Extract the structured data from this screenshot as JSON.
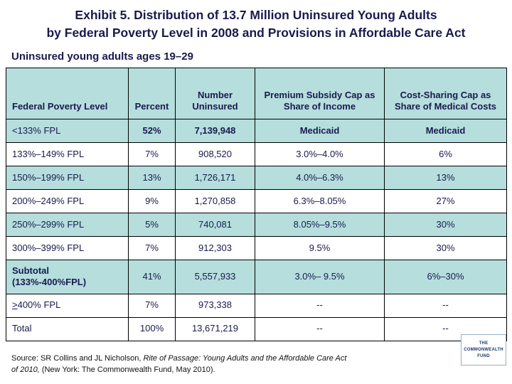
{
  "colors": {
    "row_highlight": "#b5dedd",
    "text": "#1a1a4e",
    "border": "#000000",
    "background": "#ffffff"
  },
  "slide": {
    "title_line1": "Exhibit 5. Distribution of 13.7 Million Uninsured Young Adults",
    "title_line2": "by Federal Poverty Level in 2008 and Provisions in Affordable Care Act",
    "subtitle": "Uninsured young adults ages 19–29"
  },
  "table": {
    "headers": [
      "Federal Poverty Level",
      "Percent",
      "Number Uninsured",
      "Premium Subsidy Cap as Share of Income",
      "Cost-Sharing Cap as Share of Medical Costs"
    ],
    "rows": [
      {
        "fpl": "<133% FPL",
        "percent": "52%",
        "number": "7,139,948",
        "premium": "Medicaid",
        "cost": "Medicaid",
        "shaded": true,
        "bold_values": true
      },
      {
        "fpl": "133%–149% FPL",
        "percent": "7%",
        "number": "908,520",
        "premium": "3.0%–4.0%",
        "cost": "6%",
        "shaded": false
      },
      {
        "fpl": "150%–199% FPL",
        "percent": "13%",
        "number": "1,726,171",
        "premium": "4.0%–6.3%",
        "cost": "13%",
        "shaded": true
      },
      {
        "fpl": "200%–249% FPL",
        "percent": "9%",
        "number": "1,270,858",
        "premium": "6.3%–8.05%",
        "cost": "27%",
        "shaded": false
      },
      {
        "fpl": "250%–299% FPL",
        "percent": "5%",
        "number": "740,081",
        "premium": "8.05%–9.5%",
        "cost": "30%",
        "shaded": true
      },
      {
        "fpl": "300%–399% FPL",
        "percent": "7%",
        "number": "912,303",
        "premium": "9.5%",
        "cost": "30%",
        "shaded": false
      },
      {
        "fpl": "Subtotal\n(133%-400%FPL)",
        "percent": "41%",
        "number": "5,557,933",
        "premium": "3.0%– 9.5%",
        "cost": "6%–30%",
        "shaded": true,
        "bold_label": true
      },
      {
        "fpl": ">400% FPL",
        "percent": "7%",
        "number": "973,338",
        "premium": "--",
        "cost": "--",
        "shaded": false,
        "underline_first": true
      },
      {
        "fpl": "Total",
        "percent": "100%",
        "number": "13,671,219",
        "premium": "--",
        "cost": "--",
        "shaded": false
      }
    ]
  },
  "source": {
    "prefix": "Source: SR Collins and JL Nicholson, ",
    "italic": "Rite of Passage: Young Adults and the Affordable Care Act of 2010,",
    "suffix": " (New York: The Commonwealth Fund, May 2010)."
  },
  "logo": {
    "line1": "THE",
    "line2": "COMMONWEALTH",
    "line3": "FUND"
  },
  "chart_data": {
    "type": "table",
    "title": "Exhibit 5. Distribution of 13.7 Million Uninsured Young Adults by Federal Poverty Level in 2008 and Provisions in Affordable Care Act",
    "subtitle": "Uninsured young adults ages 19–29",
    "columns": [
      "Federal Poverty Level",
      "Percent",
      "Number Uninsured",
      "Premium Subsidy Cap as Share of Income",
      "Cost-Sharing Cap as Share of Medical Costs"
    ],
    "rows": [
      [
        "<133% FPL",
        "52%",
        "7,139,948",
        "Medicaid",
        "Medicaid"
      ],
      [
        "133%–149% FPL",
        "7%",
        "908,520",
        "3.0%–4.0%",
        "6%"
      ],
      [
        "150%–199% FPL",
        "13%",
        "1,726,171",
        "4.0%–6.3%",
        "13%"
      ],
      [
        "200%–249% FPL",
        "9%",
        "1,270,858",
        "6.3%–8.05%",
        "27%"
      ],
      [
        "250%–299% FPL",
        "5%",
        "740,081",
        "8.05%–9.5%",
        "30%"
      ],
      [
        "300%–399% FPL",
        "7%",
        "912,303",
        "9.5%",
        "30%"
      ],
      [
        "Subtotal (133%-400%FPL)",
        "41%",
        "5,557,933",
        "3.0%–9.5%",
        "6%–30%"
      ],
      [
        ">400% FPL",
        "7%",
        "973,338",
        "--",
        "--"
      ],
      [
        "Total",
        "100%",
        "13,671,219",
        "--",
        "--"
      ]
    ],
    "total_uninsured": 13671219,
    "notes": "Shaded rows highlighted in pale teal; Medicaid row and Subtotal label shown bold"
  }
}
